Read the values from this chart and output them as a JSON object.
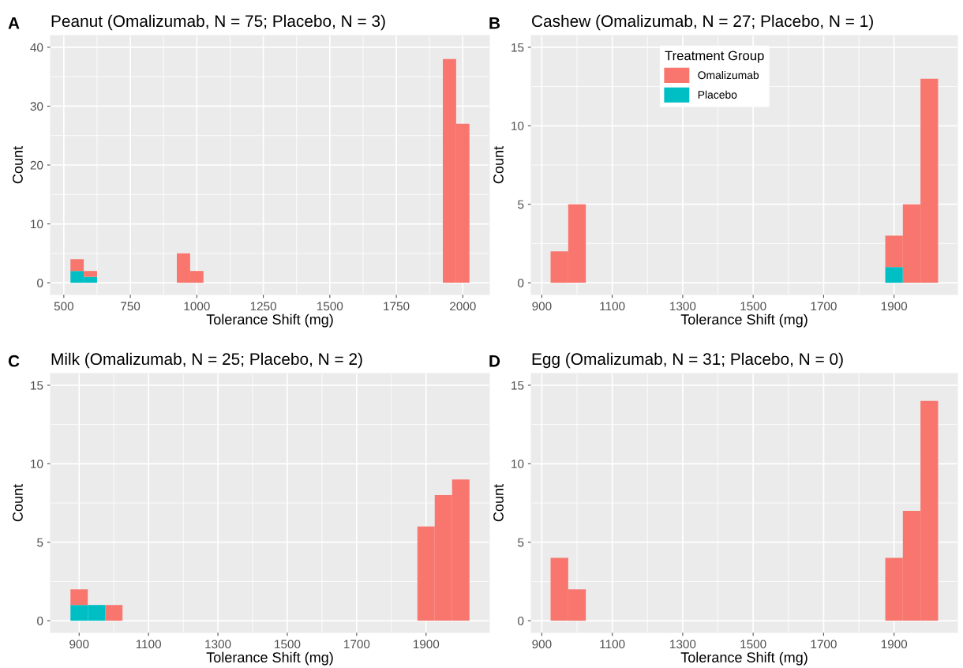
{
  "chart_data": [
    {
      "type": "bar",
      "title": "Peanut (Omalizumab, N = 75; Placebo, N = 3)",
      "annotations": [
        "A"
      ],
      "xlabel": "Tolerance Shift (mg)",
      "ylabel": "Count",
      "stacked": true,
      "grid": true,
      "x": [
        550,
        600,
        950,
        1000,
        1950,
        2000
      ],
      "series": [
        {
          "color": "#00bfc4",
          "values": [
            2,
            1,
            0,
            0,
            0,
            0
          ]
        },
        {
          "color": "#f8766d",
          "values": [
            2,
            1,
            5,
            2,
            38,
            27
          ]
        }
      ],
      "xlim": [
        450,
        2100
      ],
      "xticks": [
        500,
        750,
        1000,
        1250,
        1500,
        1750,
        2000
      ],
      "ylim": [
        -2,
        42
      ],
      "yticks": [
        0,
        10,
        20,
        30,
        40
      ]
    },
    {
      "type": "bar",
      "title": "Cashew (Omalizumab, N = 27; Placebo, N = 1)",
      "annotations": [
        "B"
      ],
      "xlabel": "Tolerance Shift (mg)",
      "ylabel": "Count",
      "stacked": true,
      "grid": true,
      "legend": "top",
      "legend_title": "Treatment Group",
      "x": [
        950,
        1000,
        1900,
        1950,
        2000
      ],
      "series": [
        {
          "name": "Placebo",
          "color": "#00bfc4",
          "values": [
            0,
            0,
            1,
            0,
            0
          ]
        },
        {
          "name": "Omalizumab",
          "color": "#f8766d",
          "values": [
            2,
            5,
            2,
            5,
            13
          ]
        }
      ],
      "xlim": [
        870,
        2080
      ],
      "xticks": [
        900,
        1100,
        1300,
        1500,
        1700,
        1900
      ],
      "ylim": [
        -0.75,
        15.75
      ],
      "yticks": [
        0,
        5,
        10,
        15
      ]
    },
    {
      "type": "bar",
      "title": "Milk (Omalizumab, N = 25; Placebo, N = 2)",
      "annotations": [
        "C"
      ],
      "xlabel": "Tolerance Shift (mg)",
      "ylabel": "Count",
      "stacked": true,
      "grid": true,
      "x": [
        900,
        950,
        1000,
        1900,
        1950,
        2000
      ],
      "series": [
        {
          "color": "#00bfc4",
          "values": [
            1,
            1,
            0,
            0,
            0,
            0
          ]
        },
        {
          "color": "#f8766d",
          "values": [
            1,
            0,
            1,
            6,
            8,
            9
          ]
        }
      ],
      "xlim": [
        817.5,
        2082.5
      ],
      "xticks": [
        900,
        1100,
        1300,
        1500,
        1700,
        1900
      ],
      "ylim": [
        -0.75,
        15.75
      ],
      "yticks": [
        0,
        5,
        10,
        15
      ]
    },
    {
      "type": "bar",
      "title": "Egg (Omalizumab, N = 31; Placebo, N = 0)",
      "annotations": [
        "D"
      ],
      "xlabel": "Tolerance Shift (mg)",
      "ylabel": "Count",
      "stacked": true,
      "grid": true,
      "x": [
        950,
        1000,
        1900,
        1950,
        2000
      ],
      "series": [
        {
          "color": "#00bfc4",
          "values": [
            0,
            0,
            0,
            0,
            0
          ]
        },
        {
          "color": "#f8766d",
          "values": [
            4,
            2,
            4,
            7,
            14
          ]
        }
      ],
      "xlim": [
        870,
        2080
      ],
      "xticks": [
        900,
        1100,
        1300,
        1500,
        1700,
        1900
      ],
      "ylim": [
        -0.75,
        15.75
      ],
      "yticks": [
        0,
        5,
        10,
        15
      ]
    }
  ]
}
